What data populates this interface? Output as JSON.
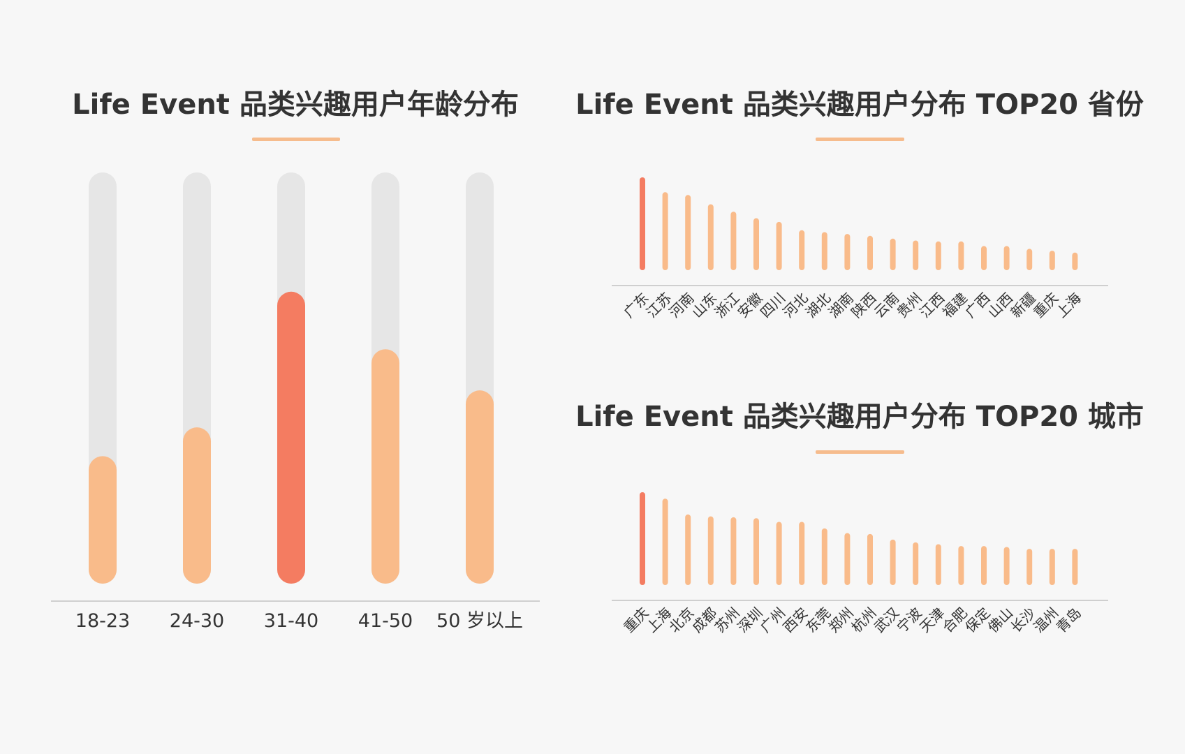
{
  "colors": {
    "background": "#f7f7f7",
    "track": "#e6e6e6",
    "bar": "#f9bb8a",
    "highlight": "#f47c61",
    "underline": "#f6bc8d",
    "axis": "#cfcfcf",
    "text": "#333333"
  },
  "chart_data": [
    {
      "type": "bar",
      "title": "Life Event 品类兴趣用户年龄分布",
      "categories": [
        "18-23",
        "24-30",
        "31-40",
        "41-50",
        "50 岁以上"
      ],
      "values": [
        0.31,
        0.38,
        0.71,
        0.57,
        0.47
      ],
      "highlight": [
        2
      ],
      "ylim": [
        0,
        1
      ],
      "track": true,
      "grid": false,
      "legend": "none"
    },
    {
      "type": "bar",
      "title": "Life Event 品类兴趣用户分布 TOP20 省份",
      "categories": [
        "广东",
        "江苏",
        "河南",
        "山东",
        "浙江",
        "安徽",
        "四川",
        "河北",
        "湖北",
        "湖南",
        "陕西",
        "云南",
        "贵州",
        "江西",
        "福建",
        "广西",
        "山西",
        "新疆",
        "重庆",
        "上海"
      ],
      "values": [
        100,
        84,
        81,
        71,
        63,
        56,
        52,
        43,
        41,
        39,
        37,
        34,
        32,
        31,
        31,
        26,
        26,
        23,
        21,
        19
      ],
      "highlight": [
        0
      ],
      "ylim": [
        0,
        100
      ],
      "grid": false,
      "legend": "none"
    },
    {
      "type": "bar",
      "title": "Life Event 品类兴趣用户分布 TOP20 城市",
      "categories": [
        "重庆",
        "上海",
        "北京",
        "成都",
        "苏州",
        "深圳",
        "广州",
        "西安",
        "东莞",
        "郑州",
        "杭州",
        "武汉",
        "宁波",
        "天津",
        "合肥",
        "保定",
        "佛山",
        "长沙",
        "温州",
        "青岛"
      ],
      "values": [
        100,
        93,
        76,
        74,
        73,
        72,
        68,
        68,
        61,
        56,
        55,
        49,
        46,
        44,
        42,
        42,
        41,
        39,
        39,
        39
      ],
      "highlight": [
        0
      ],
      "ylim": [
        0,
        100
      ],
      "grid": false,
      "legend": "none"
    }
  ]
}
